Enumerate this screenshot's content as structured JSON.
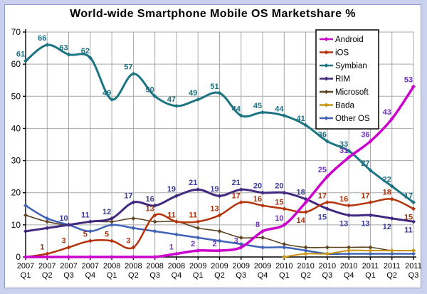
{
  "chart_data": {
    "type": "line",
    "title": "World-wide Smartphone Mobile OS Marketshare  %",
    "xlabel": "",
    "ylabel": "",
    "ylim": [
      0,
      70
    ],
    "yticks": [
      0,
      10,
      20,
      30,
      40,
      50,
      60,
      70
    ],
    "grid": true,
    "grid_color": "#a8a8a8",
    "axis_color": "#000000",
    "legend_position": "top-right",
    "categories": [
      [
        "2007",
        "Q1"
      ],
      [
        "2007",
        "Q2"
      ],
      [
        "2007",
        "Q3"
      ],
      [
        "2007",
        "Q4"
      ],
      [
        "2008",
        "Q1"
      ],
      [
        "2008",
        "Q2"
      ],
      [
        "2008",
        "Q3"
      ],
      [
        "2008",
        "Q4"
      ],
      [
        "2009",
        "Q1"
      ],
      [
        "2009",
        "Q2"
      ],
      [
        "2009",
        "Q3"
      ],
      [
        "2009",
        "Q4"
      ],
      [
        "2010",
        "Q1"
      ],
      [
        "2010",
        "Q2"
      ],
      [
        "2010",
        "Q3"
      ],
      [
        "2010",
        "Q4"
      ],
      [
        "2011",
        "Q1"
      ],
      [
        "2011",
        "Q2"
      ],
      [
        "2011",
        "Q3"
      ]
    ],
    "series": [
      {
        "name": "Android",
        "color": "#CC00CC",
        "label_color": "#7030C0",
        "line_width": 3.5,
        "values": [
          0,
          0,
          0,
          0,
          0,
          0,
          0,
          1,
          2,
          2,
          3,
          8,
          10,
          17,
          25,
          31,
          36,
          43,
          53
        ],
        "labels": [
          "",
          "",
          "",
          "",
          "",
          "",
          "",
          "1",
          "2",
          "2",
          "3",
          "8",
          "10",
          "",
          "25",
          "31",
          "36",
          "43",
          "53"
        ]
      },
      {
        "name": "iOS",
        "color": "#B5330B",
        "label_color": "#A83008",
        "line_width": 2.5,
        "values": [
          0,
          1,
          3,
          5,
          5,
          3,
          13,
          11,
          11,
          13,
          17,
          16,
          15,
          14,
          17,
          16,
          17,
          18,
          15
        ],
        "labels": [
          "",
          "1",
          "3",
          "5",
          "5",
          "3",
          "13",
          "11",
          "11",
          "13",
          "17",
          "16",
          "15",
          "14",
          "17",
          "16",
          "17",
          "18",
          "15"
        ]
      },
      {
        "name": "Symbian",
        "color": "#1B7482",
        "label_color": "#1A7080",
        "line_width": 3,
        "values": [
          61,
          66,
          63,
          62,
          49,
          57,
          50,
          47,
          49,
          51,
          44,
          45,
          44,
          41,
          36,
          33,
          27,
          22,
          17
        ],
        "labels": [
          "61",
          "66",
          "63",
          "62",
          "49",
          "57",
          "50",
          "47",
          "49",
          "51",
          "44",
          "45",
          "44",
          "41",
          "36",
          "33",
          "27",
          "22",
          "17"
        ]
      },
      {
        "name": "RIM",
        "color": "#40297E",
        "label_color": "#3A3A99",
        "line_width": 3,
        "values": [
          8,
          9,
          10,
          11,
          12,
          17,
          16,
          19,
          21,
          19,
          21,
          20,
          20,
          18,
          15,
          13,
          13,
          12,
          11
        ],
        "labels": [
          "",
          "",
          "10",
          "11",
          "12",
          "17",
          "16",
          "19",
          "21",
          "19",
          "21",
          "20",
          "20",
          "18",
          "15",
          "13",
          "13",
          "12",
          "11"
        ]
      },
      {
        "name": "Microsoft",
        "color": "#5E4423",
        "label_color": "#5E4423",
        "line_width": 1.6,
        "values": [
          13,
          11,
          10,
          11,
          11,
          12,
          11,
          11,
          9,
          8,
          6,
          6,
          4,
          3,
          3,
          3,
          3,
          2,
          2
        ],
        "labels": [
          "",
          "",
          "",
          "",
          "",
          "",
          "",
          "",
          "",
          "",
          "",
          "",
          "",
          "",
          "",
          "",
          "",
          "",
          ""
        ]
      },
      {
        "name": "Bada",
        "color": "#C9950F",
        "label_color": "#C9950F",
        "line_width": 2,
        "values": [
          null,
          null,
          null,
          null,
          null,
          null,
          null,
          null,
          null,
          null,
          null,
          null,
          0,
          1,
          1,
          2,
          2,
          2,
          2
        ],
        "labels": [
          "",
          "",
          "",
          "",
          "",
          "",
          "",
          "",
          "",
          "",
          "",
          "",
          "",
          "",
          "",
          "",
          "",
          "",
          ""
        ]
      },
      {
        "name": "Other OS",
        "color": "#4063B8",
        "label_color": "#4063B8",
        "line_width": 2.5,
        "values": [
          16,
          12,
          10,
          8,
          10,
          9,
          8,
          7,
          6,
          5,
          4,
          3,
          3,
          2,
          1,
          1,
          1,
          1,
          1
        ],
        "labels": [
          "",
          "",
          "",
          "",
          "",
          "",
          "",
          "",
          "",
          "",
          "",
          "",
          "",
          "",
          "",
          "",
          "",
          "",
          ""
        ]
      }
    ],
    "label_below": {
      "RIM": [
        14,
        15,
        16,
        17,
        18
      ],
      "iOS": [
        13,
        18
      ]
    },
    "draw_order": [
      "Microsoft",
      "Other OS",
      "Bada",
      "Symbian",
      "RIM",
      "iOS",
      "Android"
    ],
    "legend_entries": [
      "Android",
      "iOS",
      "Symbian",
      "RIM",
      "Microsoft",
      "Bada",
      "Other OS"
    ]
  }
}
